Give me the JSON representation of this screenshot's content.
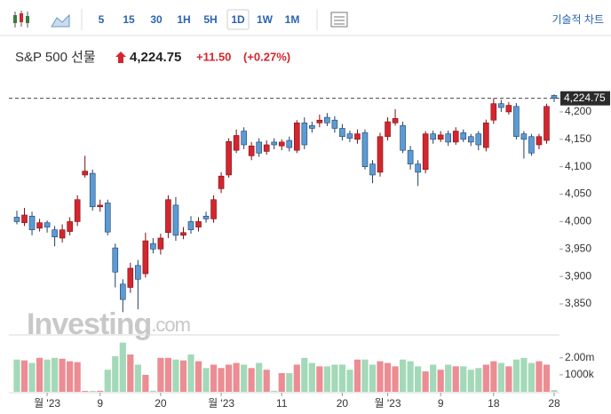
{
  "toolbar": {
    "intervals": [
      "5",
      "15",
      "30",
      "1H",
      "5H",
      "1D",
      "1W",
      "1M"
    ],
    "selected": "1D",
    "technical_button": "기술적 차트"
  },
  "quote": {
    "name": "S&P 500 선물",
    "change": "+11.50",
    "change_pct": "(+0.27%)"
  },
  "watermark": {
    "brand": "Investing",
    "suffix": ".com"
  },
  "chart_data": {
    "type": "candlestick",
    "categories": [
      null,
      null,
      null,
      null,
      "월 '23",
      null,
      null,
      null,
      null,
      null,
      null,
      "9",
      null,
      null,
      null,
      null,
      null,
      null,
      null,
      "20",
      null,
      null,
      null,
      null,
      null,
      null,
      null,
      "월 '23",
      null,
      null,
      null,
      null,
      null,
      null,
      null,
      "11",
      null,
      null,
      null,
      null,
      null,
      null,
      null,
      "20",
      null,
      null,
      null,
      null,
      null,
      "월 '23",
      null,
      null,
      null,
      null,
      null,
      null,
      "9",
      null,
      null,
      null,
      null,
      null,
      null,
      "18",
      null,
      null,
      null,
      null,
      null,
      null,
      null,
      "28"
    ],
    "open": [
      4008,
      3998,
      4010,
      3988,
      3998,
      3985,
      3970,
      3982,
      4000,
      4085,
      4088,
      4027,
      4034,
      3952,
      3886,
      3880,
      3920,
      3905,
      3960,
      3950,
      3980,
      4030,
      3975,
      4000,
      3990,
      4010,
      4005,
      4060,
      4085,
      4130,
      4165,
      4120,
      4145,
      4128,
      4145,
      4138,
      4148,
      4130,
      4180,
      4175,
      4180,
      4190,
      4185,
      4170,
      4160,
      4150,
      4162,
      4105,
      4090,
      4155,
      4180,
      4175,
      4130,
      4105,
      4095,
      4160,
      4150,
      4160,
      4145,
      4162,
      4155,
      4160,
      4135,
      4185,
      4215,
      4200,
      4210,
      4160,
      4155,
      4140,
      4148,
      4230
    ],
    "high": [
      4020,
      4025,
      4018,
      4005,
      4002,
      3992,
      3995,
      4008,
      4048,
      4120,
      4095,
      4040,
      4040,
      3960,
      3895,
      3925,
      3930,
      3980,
      3970,
      3978,
      4048,
      4045,
      3990,
      4010,
      4008,
      4018,
      4048,
      4090,
      4152,
      4168,
      4172,
      4145,
      4152,
      4148,
      4152,
      4150,
      4155,
      4185,
      4190,
      4182,
      4195,
      4198,
      4192,
      4178,
      4166,
      4168,
      4168,
      4112,
      4162,
      4190,
      4205,
      4182,
      4138,
      4112,
      4165,
      4166,
      4165,
      4166,
      4172,
      4168,
      4160,
      4165,
      4186,
      4225,
      4222,
      4218,
      4216,
      4165,
      4160,
      4160,
      4215,
      4232
    ],
    "low": [
      3995,
      3992,
      3975,
      3982,
      3980,
      3955,
      3962,
      3975,
      3992,
      4080,
      4020,
      4018,
      3975,
      3880,
      3835,
      3870,
      3840,
      3898,
      3942,
      3940,
      3970,
      3965,
      3968,
      3978,
      3982,
      3998,
      3998,
      4052,
      4080,
      4125,
      4132,
      4112,
      4118,
      4122,
      4132,
      4130,
      4128,
      4125,
      4132,
      4162,
      4172,
      4174,
      4162,
      4148,
      4145,
      4142,
      4095,
      4070,
      4082,
      4148,
      4175,
      4125,
      4095,
      4065,
      4088,
      4142,
      4145,
      4138,
      4140,
      4145,
      4138,
      4130,
      4128,
      4178,
      4200,
      4195,
      4150,
      4115,
      4120,
      4132,
      4142,
      4218
    ],
    "close": [
      4000,
      4012,
      3985,
      3998,
      3990,
      3972,
      3985,
      4000,
      4040,
      4092,
      4027,
      4030,
      3981,
      3908,
      3858,
      3915,
      3895,
      3965,
      3950,
      3970,
      4040,
      3975,
      3980,
      3985,
      4000,
      4005,
      4040,
      4083,
      4146,
      4157,
      4140,
      4138,
      4125,
      4140,
      4140,
      4145,
      4135,
      4180,
      4140,
      4170,
      4185,
      4180,
      4170,
      4155,
      4152,
      4160,
      4100,
      4085,
      4155,
      4182,
      4188,
      4130,
      4105,
      4090,
      4160,
      4150,
      4158,
      4145,
      4165,
      4150,
      4145,
      4140,
      4180,
      4215,
      4208,
      4212,
      4155,
      4150,
      4125,
      4155,
      4210,
      4224.75
    ],
    "volume": [
      1900000,
      1850000,
      1700000,
      2000000,
      1900000,
      2000000,
      1950000,
      1800000,
      1750000,
      50000,
      50000,
      60000,
      1300000,
      2100000,
      2900000,
      2200000,
      1600000,
      1000000,
      60000,
      2000000,
      2000000,
      1900000,
      1850000,
      2200000,
      1800000,
      1400000,
      1600000,
      1400000,
      1600000,
      1700000,
      1600000,
      1400000,
      1700000,
      1300000,
      60000,
      1100000,
      1100000,
      1600000,
      2000000,
      1700000,
      1500000,
      1500000,
      1600000,
      1600000,
      1300000,
      1900000,
      1900000,
      1600000,
      1800000,
      1700000,
      1500000,
      1900000,
      1800000,
      1500000,
      1200000,
      1600000,
      1300000,
      1600000,
      1500000,
      1500000,
      1300000,
      1400000,
      1600000,
      1800000,
      1700000,
      1500000,
      1900000,
      2000000,
      1700000,
      1800000,
      1600000,
      100000
    ],
    "last_price": {
      "value": 4224.75,
      "label": "4,224.75"
    },
    "ylim": [
      3795,
      4255
    ],
    "yticks": [
      {
        "value": 3850,
        "label": "3,850"
      },
      {
        "value": 3900,
        "label": "3,900"
      },
      {
        "value": 3950,
        "label": "3,950"
      },
      {
        "value": 4000,
        "label": "4,000"
      },
      {
        "value": 4050,
        "label": "4,050"
      },
      {
        "value": 4100,
        "label": "4,100"
      },
      {
        "value": 4150,
        "label": "4,150"
      },
      {
        "value": 4200,
        "label": "4,200"
      }
    ],
    "volume_ylim": [
      0,
      3300000
    ],
    "volume_yticks": [
      {
        "value": 1000000,
        "label": "1000k"
      },
      {
        "value": 2000000,
        "label": "2.00m"
      }
    ],
    "up_color": "#d3262e",
    "down_color": "#5b9bd5",
    "volume_up_color": "#ec8c93",
    "volume_down_color": "#a3d9b8"
  }
}
